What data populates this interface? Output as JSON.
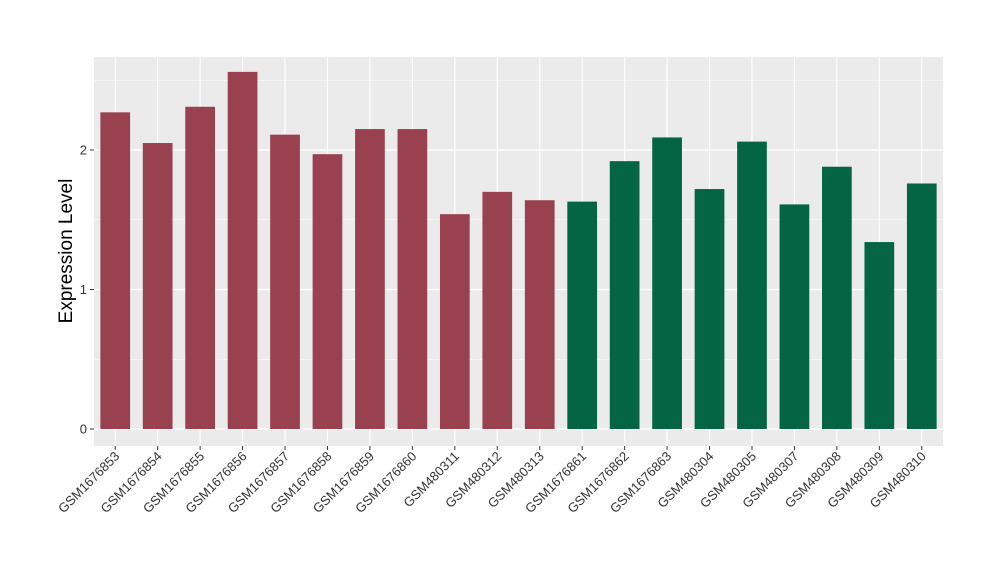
{
  "chart_data": {
    "type": "bar",
    "title": "",
    "xlabel": "",
    "ylabel": "Expression Level",
    "ylim": [
      -0.1,
      2.67
    ],
    "yticks": [
      0,
      1,
      2
    ],
    "grid": true,
    "legend": "none",
    "colors": {
      "group_a": "#9A4150",
      "group_b": "#036544",
      "panel": "#EBEBEB",
      "grid": "#FFFFFF"
    },
    "categories": [
      "GSM1676853",
      "GSM1676854",
      "GSM1676855",
      "GSM1676856",
      "GSM1676857",
      "GSM1676858",
      "GSM1676859",
      "GSM1676860",
      "GSM480311",
      "GSM480312",
      "GSM480313",
      "GSM1676861",
      "GSM1676862",
      "GSM1676863",
      "GSM480304",
      "GSM480305",
      "GSM480307",
      "GSM480308",
      "GSM480309",
      "GSM480310"
    ],
    "values": [
      2.27,
      2.05,
      2.31,
      2.56,
      2.11,
      1.97,
      2.15,
      2.15,
      1.54,
      1.7,
      1.64,
      1.63,
      1.92,
      2.09,
      1.72,
      2.06,
      1.61,
      1.88,
      1.34,
      1.76
    ],
    "bar_group": [
      "a",
      "a",
      "a",
      "a",
      "a",
      "a",
      "a",
      "a",
      "a",
      "a",
      "a",
      "b",
      "b",
      "b",
      "b",
      "b",
      "b",
      "b",
      "b",
      "b"
    ]
  }
}
